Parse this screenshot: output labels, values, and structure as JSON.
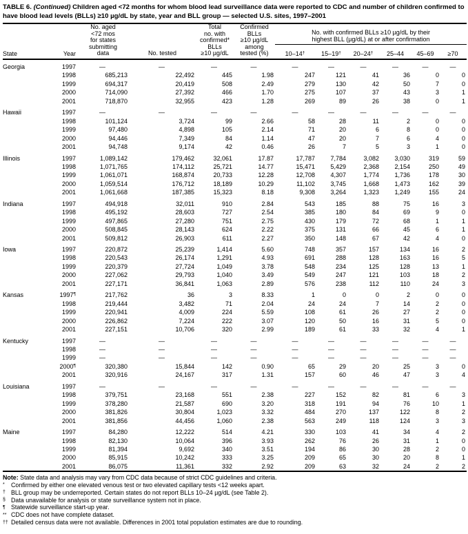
{
  "title": {
    "part1": "TABLE 6. ",
    "part2": "(Continued)",
    "part3": " Children aged <72 months for whom blood lead surveillance data were reported to CDC and number of children confirmed to have blood lead levels (BLLs) ≥10 µg/dL by state, year and BLL group — selected U.S. sites, 1997–2001"
  },
  "table": {
    "col_state": "State",
    "col_year": "Year",
    "col_aged": "No. aged\n<72 mos\nfor states\nsubmitting\ndata",
    "col_tested": "No. tested",
    "col_total": "Total\nno. with\nconfirmed*\nBLLs\n≥10 µg/dL",
    "col_pct": "Confirmed\nBLLs\n≥10 µg/dL\namong\ntested (%)",
    "group_header": "No. with confirmed BLLs ≥10 µg/dL by their\nhighest BLL (µg/dL) at or after confirmation",
    "sub_columns": [
      {
        "label": "10–14",
        "mark": "†"
      },
      {
        "label": "15–19",
        "mark": "†"
      },
      {
        "label": "20–24",
        "mark": "†"
      },
      {
        "label": "25–44",
        "mark": ""
      },
      {
        "label": "45–69",
        "mark": ""
      },
      {
        "label": "≥70",
        "mark": ""
      }
    ],
    "dash": "—",
    "groups": [
      {
        "state": "Georgia",
        "rows": [
          {
            "year": "1997",
            "mark": "",
            "cells": [
              "—",
              "—",
              "—",
              "—",
              "—",
              "—",
              "—",
              "—",
              "—",
              "—"
            ]
          },
          {
            "year": "1998",
            "mark": "",
            "cells": [
              "685,213",
              "22,492",
              "445",
              "1.98",
              "247",
              "121",
              "41",
              "36",
              "0",
              "0"
            ]
          },
          {
            "year": "1999",
            "mark": "",
            "cells": [
              "694,317",
              "20,419",
              "508",
              "2.49",
              "279",
              "130",
              "42",
              "50",
              "7",
              "0"
            ]
          },
          {
            "year": "2000",
            "mark": "",
            "cells": [
              "714,090",
              "27,392",
              "466",
              "1.70",
              "275",
              "107",
              "37",
              "43",
              "3",
              "1"
            ]
          },
          {
            "year": "2001",
            "mark": "",
            "cells": [
              "718,870",
              "32,955",
              "423",
              "1.28",
              "269",
              "89",
              "26",
              "38",
              "0",
              "1"
            ]
          }
        ]
      },
      {
        "state": "Hawaii",
        "rows": [
          {
            "year": "1997",
            "mark": "",
            "cells": [
              "—",
              "—",
              "—",
              "—",
              "—",
              "—",
              "—",
              "—",
              "—",
              "—"
            ]
          },
          {
            "year": "1998",
            "mark": "",
            "cells": [
              "101,124",
              "3,724",
              "99",
              "2.66",
              "58",
              "28",
              "11",
              "2",
              "0",
              "0"
            ]
          },
          {
            "year": "1999",
            "mark": "",
            "cells": [
              "97,480",
              "4,898",
              "105",
              "2.14",
              "71",
              "20",
              "6",
              "8",
              "0",
              "0"
            ]
          },
          {
            "year": "2000",
            "mark": "",
            "cells": [
              "94,446",
              "7,349",
              "84",
              "1.14",
              "47",
              "20",
              "7",
              "6",
              "4",
              "0"
            ]
          },
          {
            "year": "2001",
            "mark": "",
            "cells": [
              "94,748",
              "9,174",
              "42",
              "0.46",
              "26",
              "7",
              "5",
              "3",
              "1",
              "0"
            ]
          }
        ]
      },
      {
        "state": "Illinois",
        "rows": [
          {
            "year": "1997",
            "mark": "",
            "cells": [
              "1,089,142",
              "179,462",
              "32,061",
              "17.87",
              "17,787",
              "7,784",
              "3,082",
              "3,030",
              "319",
              "59"
            ]
          },
          {
            "year": "1998",
            "mark": "",
            "cells": [
              "1,071,765",
              "174,112",
              "25,721",
              "14.77",
              "15,471",
              "5,429",
              "2,368",
              "2,154",
              "250",
              "49"
            ]
          },
          {
            "year": "1999",
            "mark": "",
            "cells": [
              "1,061,071",
              "168,874",
              "20,733",
              "12.28",
              "12,708",
              "4,307",
              "1,774",
              "1,736",
              "178",
              "30"
            ]
          },
          {
            "year": "2000",
            "mark": "",
            "cells": [
              "1,059,514",
              "176,712",
              "18,189",
              "10.29",
              "11,102",
              "3,745",
              "1,668",
              "1,473",
              "162",
              "39"
            ]
          },
          {
            "year": "2001",
            "mark": "",
            "cells": [
              "1,061,668",
              "187,385",
              "15,323",
              "8.18",
              "9,308",
              "3,264",
              "1,323",
              "1,249",
              "155",
              "24"
            ]
          }
        ]
      },
      {
        "state": "Indiana",
        "rows": [
          {
            "year": "1997",
            "mark": "",
            "cells": [
              "494,918",
              "32,011",
              "910",
              "2.84",
              "543",
              "185",
              "88",
              "75",
              "16",
              "3"
            ]
          },
          {
            "year": "1998",
            "mark": "",
            "cells": [
              "495,192",
              "28,603",
              "727",
              "2.54",
              "385",
              "180",
              "84",
              "69",
              "9",
              "0"
            ]
          },
          {
            "year": "1999",
            "mark": "",
            "cells": [
              "497,865",
              "27,280",
              "751",
              "2.75",
              "430",
              "179",
              "72",
              "68",
              "1",
              "1"
            ]
          },
          {
            "year": "2000",
            "mark": "",
            "cells": [
              "508,845",
              "28,143",
              "624",
              "2.22",
              "375",
              "131",
              "66",
              "45",
              "6",
              "1"
            ]
          },
          {
            "year": "2001",
            "mark": "",
            "cells": [
              "509,812",
              "26,903",
              "611",
              "2.27",
              "350",
              "148",
              "67",
              "42",
              "4",
              "0"
            ]
          }
        ]
      },
      {
        "state": "Iowa",
        "rows": [
          {
            "year": "1997",
            "mark": "",
            "cells": [
              "220,872",
              "25,239",
              "1,414",
              "5.60",
              "748",
              "357",
              "157",
              "134",
              "16",
              "2"
            ]
          },
          {
            "year": "1998",
            "mark": "",
            "cells": [
              "220,543",
              "26,174",
              "1,291",
              "4.93",
              "691",
              "288",
              "128",
              "163",
              "16",
              "5"
            ]
          },
          {
            "year": "1999",
            "mark": "",
            "cells": [
              "220,379",
              "27,724",
              "1,049",
              "3.78",
              "548",
              "234",
              "125",
              "128",
              "13",
              "1"
            ]
          },
          {
            "year": "2000",
            "mark": "",
            "cells": [
              "227,062",
              "29,793",
              "1,040",
              "3.49",
              "549",
              "247",
              "121",
              "103",
              "18",
              "2"
            ]
          },
          {
            "year": "2001",
            "mark": "",
            "cells": [
              "227,171",
              "36,841",
              "1,063",
              "2.89",
              "576",
              "238",
              "112",
              "110",
              "24",
              "3"
            ]
          }
        ]
      },
      {
        "state": "Kansas",
        "rows": [
          {
            "year": "1997",
            "mark": "¶",
            "cells": [
              "217,762",
              "36",
              "3",
              "8.33",
              "1",
              "0",
              "0",
              "2",
              "0",
              "0"
            ]
          },
          {
            "year": "1998",
            "mark": "",
            "cells": [
              "219,444",
              "3,482",
              "71",
              "2.04",
              "24",
              "24",
              "7",
              "14",
              "2",
              "0"
            ]
          },
          {
            "year": "1999",
            "mark": "",
            "cells": [
              "220,941",
              "4,009",
              "224",
              "5.59",
              "108",
              "61",
              "26",
              "27",
              "2",
              "0"
            ]
          },
          {
            "year": "2000",
            "mark": "",
            "cells": [
              "226,862",
              "7,224",
              "222",
              "3.07",
              "120",
              "50",
              "16",
              "31",
              "5",
              "0"
            ]
          },
          {
            "year": "2001",
            "mark": "",
            "cells": [
              "227,151",
              "10,706",
              "320",
              "2.99",
              "189",
              "61",
              "33",
              "32",
              "4",
              "1"
            ]
          }
        ]
      },
      {
        "state": "Kentucky",
        "rows": [
          {
            "year": "1997",
            "mark": "",
            "cells": [
              "—",
              "—",
              "—",
              "—",
              "—",
              "—",
              "—",
              "—",
              "—",
              "—"
            ]
          },
          {
            "year": "1998",
            "mark": "",
            "cells": [
              "—",
              "—",
              "—",
              "—",
              "—",
              "—",
              "—",
              "—",
              "—",
              "—"
            ]
          },
          {
            "year": "1999",
            "mark": "",
            "cells": [
              "—",
              "—",
              "—",
              "—",
              "—",
              "—",
              "—",
              "—",
              "—",
              "—"
            ]
          },
          {
            "year": "2000",
            "mark": "¶",
            "cells": [
              "320,380",
              "15,844",
              "142",
              "0.90",
              "65",
              "29",
              "20",
              "25",
              "3",
              "0"
            ]
          },
          {
            "year": "2001",
            "mark": "",
            "cells": [
              "320,916",
              "24,167",
              "317",
              "1.31",
              "157",
              "60",
              "46",
              "47",
              "3",
              "4"
            ]
          }
        ]
      },
      {
        "state": "Louisiana",
        "rows": [
          {
            "year": "1997",
            "mark": "",
            "cells": [
              "—",
              "—",
              "—",
              "—",
              "—",
              "—",
              "—",
              "—",
              "—",
              "—"
            ]
          },
          {
            "year": "1998",
            "mark": "",
            "cells": [
              "379,751",
              "23,168",
              "551",
              "2.38",
              "227",
              "152",
              "82",
              "81",
              "6",
              "3"
            ]
          },
          {
            "year": "1999",
            "mark": "",
            "cells": [
              "378,280",
              "21,587",
              "690",
              "3.20",
              "318",
              "191",
              "94",
              "76",
              "10",
              "1"
            ]
          },
          {
            "year": "2000",
            "mark": "",
            "cells": [
              "381,826",
              "30,804",
              "1,023",
              "3.32",
              "484",
              "270",
              "137",
              "122",
              "8",
              "2"
            ]
          },
          {
            "year": "2001",
            "mark": "",
            "cells": [
              "381,856",
              "44,456",
              "1,060",
              "2.38",
              "563",
              "249",
              "118",
              "124",
              "3",
              "3"
            ]
          }
        ]
      },
      {
        "state": "Maine",
        "rows": [
          {
            "year": "1997",
            "mark": "",
            "cells": [
              "84,280",
              "12,222",
              "514",
              "4.21",
              "330",
              "103",
              "41",
              "34",
              "4",
              "2"
            ]
          },
          {
            "year": "1998",
            "mark": "",
            "cells": [
              "82,130",
              "10,064",
              "396",
              "3.93",
              "262",
              "76",
              "26",
              "31",
              "1",
              "0"
            ]
          },
          {
            "year": "1999",
            "mark": "",
            "cells": [
              "81,394",
              "9,692",
              "340",
              "3.51",
              "194",
              "86",
              "30",
              "28",
              "2",
              "0"
            ]
          },
          {
            "year": "2000",
            "mark": "",
            "cells": [
              "85,915",
              "10,242",
              "333",
              "3.25",
              "209",
              "65",
              "30",
              "20",
              "8",
              "1"
            ]
          },
          {
            "year": "2001",
            "mark": "",
            "cells": [
              "86,075",
              "11,361",
              "332",
              "2.92",
              "209",
              "63",
              "32",
              "24",
              "2",
              "2"
            ]
          }
        ]
      }
    ]
  },
  "note": {
    "label": "Note:",
    "text": " State data and analysis may vary from CDC data because of strict CDC guidelines and criteria."
  },
  "footnotes": [
    {
      "mark": "*",
      "text": "Confirmed by either one elevated venous test or two elevated capillary tests <12 weeks apart."
    },
    {
      "mark": "†",
      "text": "BLL group may be underreported. Certain states do not report BLLs 10–24 µg/dL (see Table 2)."
    },
    {
      "mark": "§",
      "text": "Data unavailable for analysis or state surveillance system not in place."
    },
    {
      "mark": "¶",
      "text": "Statewide surveillance start-up year."
    },
    {
      "mark": "**",
      "text": "CDC does not have complete dataset."
    },
    {
      "mark": "††",
      "text": "Detailed census data were not available. Differences in 2001 total population estimates are due to rounding."
    }
  ]
}
